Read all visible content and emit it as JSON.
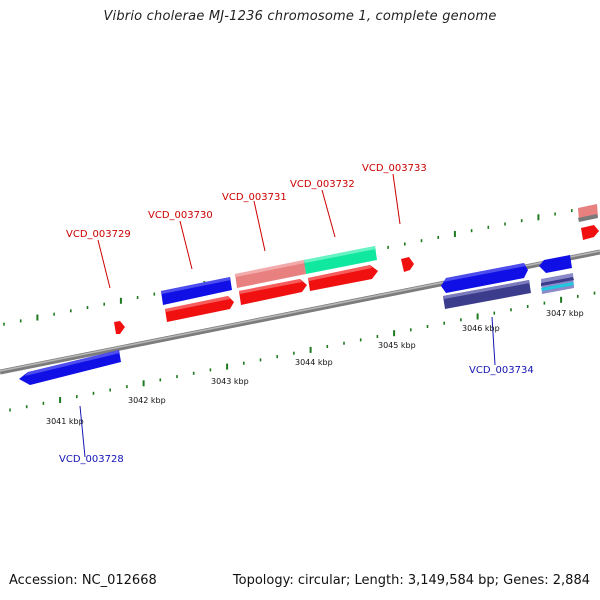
{
  "title": "Vibrio cholerae MJ-1236 chromosome 1, complete genome",
  "footer": {
    "accession": "Accession: NC_012668",
    "summary": "Topology: circular; Length: 3,149,584 bp; Genes: 2,884"
  },
  "colors": {
    "backbone": "#8a8a8a",
    "tick": "#1e7a1e",
    "forward_label": "#cc0000",
    "reverse_label": "#1414b4",
    "blue": "#1010e6",
    "red": "#f01010",
    "pink": "#e88080",
    "green": "#10e8a0",
    "navy": "#3c3c8c",
    "cyan": "#20c8e0"
  },
  "tick_labels": [
    "3041 kbp",
    "3042 kbp",
    "3043 kbp",
    "3044 kbp",
    "3045 kbp",
    "3046 kbp",
    "3047 kbp"
  ],
  "gene_labels": [
    {
      "text": "VCD_003728",
      "strand": "reverse"
    },
    {
      "text": "VCD_003729",
      "strand": "forward"
    },
    {
      "text": "VCD_003730",
      "strand": "forward"
    },
    {
      "text": "VCD_003731",
      "strand": "forward"
    },
    {
      "text": "VCD_003732",
      "strand": "forward"
    },
    {
      "text": "VCD_003733",
      "strand": "forward"
    },
    {
      "text": "VCD_003734",
      "strand": "reverse"
    }
  ]
}
